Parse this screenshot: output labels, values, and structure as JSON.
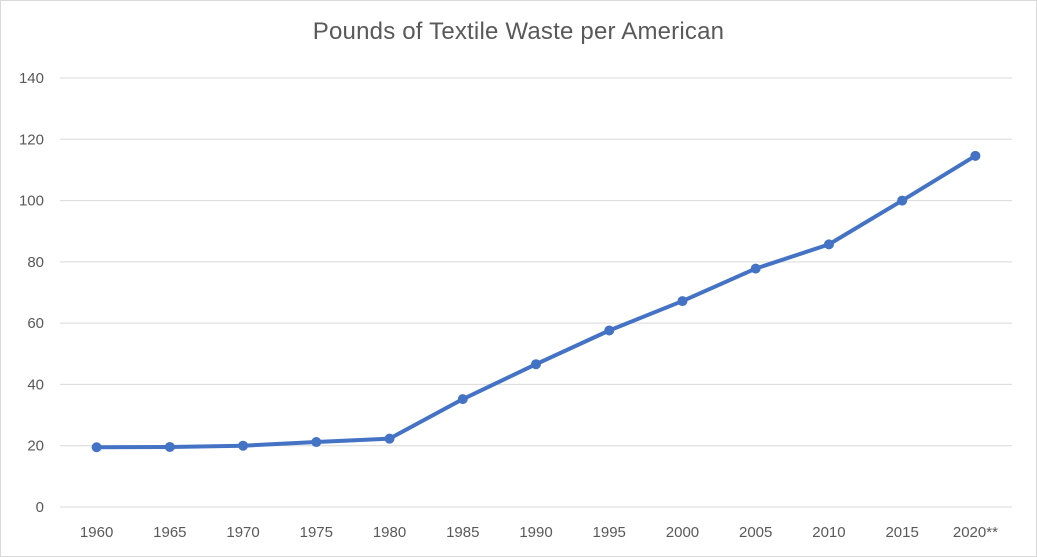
{
  "chart_data": {
    "type": "line",
    "title": "Pounds of Textile Waste per American",
    "xlabel": "",
    "ylabel": "",
    "categories": [
      "1960",
      "1965",
      "1970",
      "1975",
      "1980",
      "1985",
      "1990",
      "1995",
      "2000",
      "2005",
      "2010",
      "2015",
      "2020**"
    ],
    "series": [
      {
        "values": [
          19.5,
          19.6,
          20.0,
          21.2,
          22.3,
          35.2,
          46.6,
          57.6,
          67.2,
          77.8,
          85.7,
          100.0,
          114.6
        ]
      }
    ],
    "ylim": [
      0,
      140
    ],
    "yticks": [
      0,
      20,
      40,
      60,
      80,
      100,
      120,
      140
    ],
    "grid": true,
    "legend": "none",
    "colors": {
      "line": "#4472c4",
      "grid": "#d9d9d9",
      "text": "#595959"
    }
  }
}
